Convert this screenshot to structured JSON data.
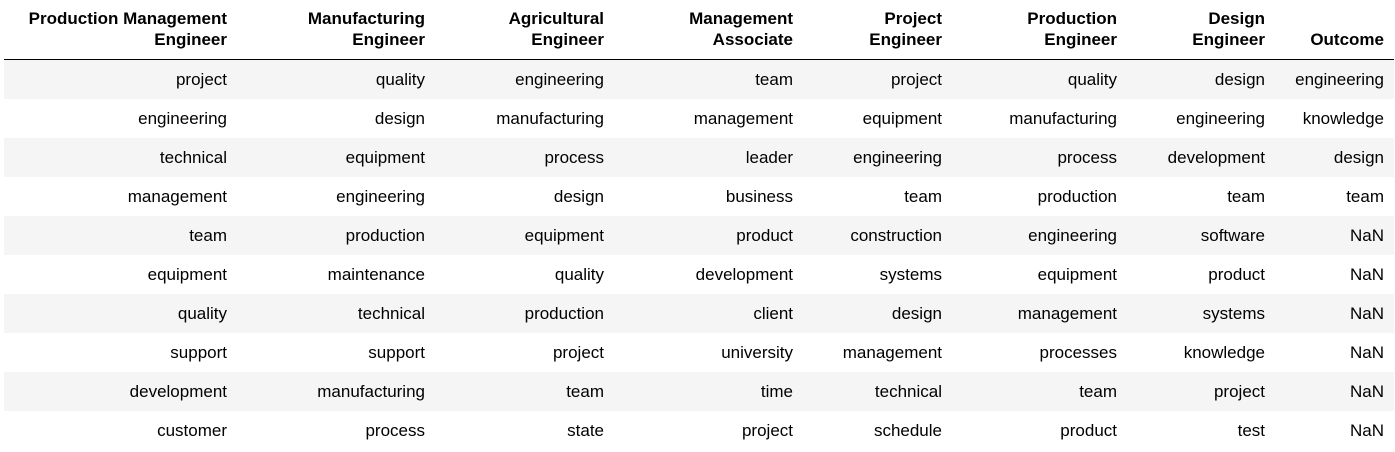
{
  "table": {
    "columns": [
      [
        "Production Management",
        "Engineer"
      ],
      [
        "Manufacturing",
        "Engineer"
      ],
      [
        "Agricultural",
        "Engineer"
      ],
      [
        "Management",
        "Associate"
      ],
      [
        "Project",
        "Engineer"
      ],
      [
        "Production",
        "Engineer"
      ],
      [
        "Design",
        "Engineer"
      ],
      [
        "Outcome"
      ]
    ],
    "rows": [
      [
        "project",
        "quality",
        "engineering",
        "team",
        "project",
        "quality",
        "design",
        "engineering"
      ],
      [
        "engineering",
        "design",
        "manufacturing",
        "management",
        "equipment",
        "manufacturing",
        "engineering",
        "knowledge"
      ],
      [
        "technical",
        "equipment",
        "process",
        "leader",
        "engineering",
        "process",
        "development",
        "design"
      ],
      [
        "management",
        "engineering",
        "design",
        "business",
        "team",
        "production",
        "team",
        "team"
      ],
      [
        "team",
        "production",
        "equipment",
        "product",
        "construction",
        "engineering",
        "software",
        "NaN"
      ],
      [
        "equipment",
        "maintenance",
        "quality",
        "development",
        "systems",
        "equipment",
        "product",
        "NaN"
      ],
      [
        "quality",
        "technical",
        "production",
        "client",
        "design",
        "management",
        "systems",
        "NaN"
      ],
      [
        "support",
        "support",
        "project",
        "university",
        "management",
        "processes",
        "knowledge",
        "NaN"
      ],
      [
        "development",
        "manufacturing",
        "team",
        "time",
        "technical",
        "team",
        "project",
        "NaN"
      ],
      [
        "customer",
        "process",
        "state",
        "project",
        "schedule",
        "product",
        "test",
        "NaN"
      ]
    ]
  }
}
